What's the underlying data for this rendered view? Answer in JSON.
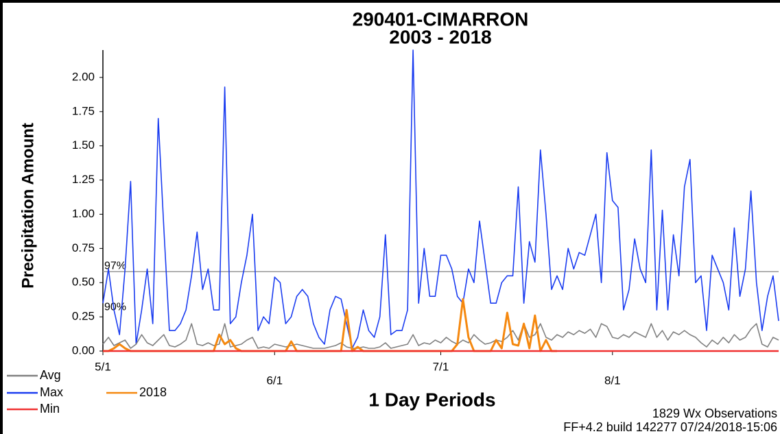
{
  "chart_data": {
    "type": "line",
    "title": "290401-CIMARRON",
    "subtitle": "2003 - 2018",
    "y_label": "Precipitation Amount",
    "x_label": "1 Day Periods",
    "footer": [
      "1829 Wx Observations",
      "FF+4.2 build 142277 07/24/2018-15:06"
    ],
    "reference_lines": [
      {
        "label": "97%",
        "value": 0.58
      },
      {
        "label": "90%",
        "value": 0.28
      }
    ],
    "ylim": [
      0,
      2.2
    ],
    "yticks": [
      {
        "value": 0,
        "label": "0.00"
      },
      {
        "value": 0.25,
        "label": "0.25"
      },
      {
        "value": 0.5,
        "label": "0.50"
      },
      {
        "value": 0.75,
        "label": "0.75"
      },
      {
        "value": 1,
        "label": "1.00"
      },
      {
        "value": 1.25,
        "label": "1.25"
      },
      {
        "value": 1.5,
        "label": "1.50"
      },
      {
        "value": 1.75,
        "label": "1.75"
      },
      {
        "value": 2,
        "label": "2.00"
      }
    ],
    "categories": [
      "5/1",
      null,
      null,
      null,
      null,
      null,
      null,
      null,
      null,
      null,
      null,
      null,
      null,
      null,
      null,
      null,
      null,
      null,
      null,
      null,
      null,
      null,
      null,
      null,
      null,
      null,
      null,
      null,
      null,
      null,
      null,
      "6/1",
      null,
      null,
      null,
      null,
      null,
      null,
      null,
      null,
      null,
      null,
      null,
      null,
      null,
      null,
      null,
      null,
      null,
      null,
      null,
      null,
      null,
      null,
      null,
      null,
      null,
      null,
      null,
      null,
      null,
      "7/1",
      null,
      null,
      null,
      null,
      null,
      null,
      null,
      null,
      null,
      null,
      null,
      null,
      null,
      null,
      null,
      null,
      null,
      null,
      null,
      null,
      null,
      null,
      null,
      null,
      null,
      null,
      null,
      null,
      null,
      null,
      "8/1",
      null,
      null,
      null,
      null,
      null,
      null,
      null,
      null,
      null,
      null,
      null,
      null,
      null,
      null,
      null,
      null,
      null,
      null,
      null,
      null,
      null,
      null,
      null,
      null,
      null,
      null,
      null,
      null,
      null,
      null
    ],
    "series": [
      {
        "name": "Max",
        "color": "#1a3cf0",
        "values": [
          0.35,
          0.6,
          0.3,
          0.12,
          0.6,
          1.24,
          0.05,
          0.3,
          0.6,
          0.2,
          1.7,
          0.9,
          0.15,
          0.15,
          0.2,
          0.3,
          0.55,
          0.87,
          0.45,
          0.6,
          0.3,
          0.3,
          1.93,
          0.2,
          0.25,
          0.5,
          0.7,
          1.0,
          0.15,
          0.25,
          0.2,
          0.54,
          0.5,
          0.2,
          0.25,
          0.4,
          0.45,
          0.4,
          0.2,
          0.1,
          0.05,
          0.3,
          0.4,
          0.38,
          0.2,
          0.02,
          0.1,
          0.3,
          0.15,
          0.1,
          0.25,
          0.85,
          0.12,
          0.15,
          0.15,
          0.3,
          2.2,
          0.35,
          0.75,
          0.4,
          0.4,
          0.7,
          0.7,
          0.6,
          0.4,
          0.35,
          0.6,
          0.5,
          0.95,
          0.65,
          0.35,
          0.35,
          0.5,
          0.55,
          0.55,
          1.2,
          0.35,
          0.8,
          0.65,
          1.47,
          1.0,
          0.45,
          0.55,
          0.45,
          0.75,
          0.6,
          0.72,
          0.7,
          0.85,
          1.0,
          0.5,
          1.45,
          1.1,
          1.05,
          0.3,
          0.45,
          0.82,
          0.6,
          0.5,
          1.47,
          0.3,
          1.03,
          0.3,
          0.85,
          0.55,
          1.2,
          1.4,
          0.5,
          0.55,
          0.15,
          0.7,
          0.6,
          0.5,
          0.3,
          0.9,
          0.4,
          0.6,
          1.17,
          0.5,
          0.15,
          0.4,
          0.55,
          0.22
        ]
      },
      {
        "name": "Avg",
        "color": "#808080",
        "values": [
          0.05,
          0.1,
          0.04,
          0.06,
          0.08,
          0.02,
          0.05,
          0.12,
          0.06,
          0.04,
          0.08,
          0.12,
          0.04,
          0.03,
          0.05,
          0.08,
          0.2,
          0.05,
          0.04,
          0.06,
          0.04,
          0.05,
          0.2,
          0.03,
          0.04,
          0.05,
          0.08,
          0.1,
          0.02,
          0.03,
          0.02,
          0.05,
          0.04,
          0.03,
          0.04,
          0.05,
          0.04,
          0.03,
          0.02,
          0.02,
          0.02,
          0.03,
          0.04,
          0.06,
          0.03,
          0.02,
          0.02,
          0.03,
          0.02,
          0.02,
          0.03,
          0.06,
          0.02,
          0.03,
          0.04,
          0.05,
          0.12,
          0.04,
          0.06,
          0.05,
          0.08,
          0.06,
          0.1,
          0.07,
          0.05,
          0.08,
          0.06,
          0.12,
          0.08,
          0.05,
          0.06,
          0.08,
          0.07,
          0.1,
          0.15,
          0.08,
          0.2,
          0.1,
          0.12,
          0.2,
          0.1,
          0.08,
          0.12,
          0.1,
          0.14,
          0.12,
          0.15,
          0.13,
          0.16,
          0.1,
          0.2,
          0.18,
          0.1,
          0.09,
          0.12,
          0.1,
          0.14,
          0.12,
          0.1,
          0.2,
          0.1,
          0.15,
          0.08,
          0.14,
          0.12,
          0.15,
          0.12,
          0.1,
          0.06,
          0.03,
          0.08,
          0.05,
          0.1,
          0.06,
          0.12,
          0.08,
          0.1,
          0.16,
          0.2,
          0.05,
          0.03,
          0.1,
          0.08
        ]
      },
      {
        "name": "2018",
        "color": "#f5880f",
        "values": [
          0,
          0,
          0.02,
          0.05,
          0.02,
          0,
          0,
          0,
          0,
          0,
          0,
          0,
          0,
          0,
          0,
          0,
          0,
          0,
          0,
          0,
          0,
          0.12,
          0.05,
          0.08,
          0.02,
          0,
          0,
          0,
          0,
          0,
          0,
          0,
          0,
          0,
          0.07,
          0,
          0,
          0,
          0,
          0,
          0,
          0,
          0,
          0,
          0.3,
          0,
          0.03,
          0,
          0,
          0,
          0,
          0,
          0,
          0,
          0,
          0,
          0,
          0,
          0,
          0,
          0,
          0,
          0,
          0,
          0.05,
          0.38,
          0.1,
          0,
          0,
          0,
          0,
          0.08,
          0.02,
          0.28,
          0.05,
          0.04,
          0.2,
          0.02,
          0.26,
          0,
          0.08,
          0,
          0,
          null,
          null,
          null,
          null,
          null,
          null,
          null,
          null,
          null,
          null,
          null,
          null,
          null,
          null,
          null,
          null,
          null,
          null,
          null,
          null,
          null,
          null,
          null,
          null,
          null,
          null,
          null,
          null,
          null,
          null,
          null,
          null,
          null,
          null,
          null,
          null,
          null,
          null,
          null,
          null
        ]
      },
      {
        "name": "Min",
        "color": "#f03030",
        "values": [
          0,
          0,
          0,
          0,
          0,
          0,
          0,
          0,
          0,
          0,
          0,
          0,
          0,
          0,
          0,
          0,
          0,
          0,
          0,
          0,
          0,
          0,
          0,
          0,
          0,
          0,
          0,
          0,
          0,
          0,
          0,
          0,
          0,
          0,
          0,
          0,
          0,
          0,
          0,
          0,
          0,
          0,
          0,
          0,
          0,
          0,
          0,
          0,
          0,
          0,
          0,
          0,
          0,
          0,
          0,
          0,
          0,
          0,
          0,
          0,
          0,
          0,
          0,
          0,
          0,
          0,
          0,
          0,
          0,
          0,
          0,
          0,
          0,
          0,
          0,
          0,
          0,
          0,
          0,
          0,
          0,
          0,
          0,
          0,
          0,
          0,
          0,
          0,
          0,
          0,
          0,
          0,
          0,
          0,
          0,
          0,
          0,
          0,
          0,
          0,
          0,
          0,
          0,
          0,
          0,
          0,
          0,
          0,
          0,
          0,
          0,
          0,
          0,
          0,
          0,
          0,
          0,
          0,
          0,
          0,
          0,
          0,
          0
        ]
      }
    ]
  }
}
